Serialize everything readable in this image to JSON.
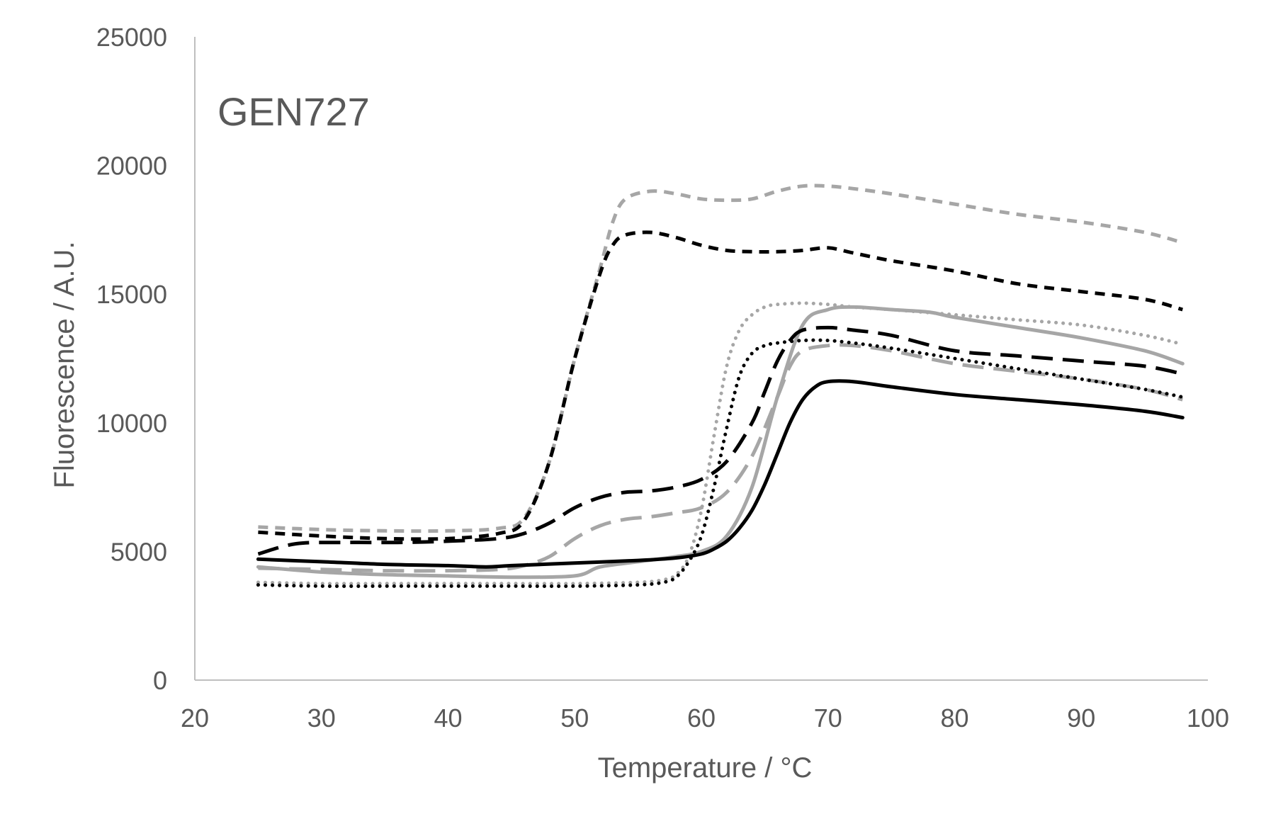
{
  "chart_data": {
    "type": "line",
    "title": "GEN727",
    "xlabel": "Temperature / °C",
    "ylabel": "Fluorescence / A.U.",
    "xlim": [
      20,
      100
    ],
    "ylim": [
      0,
      25000
    ],
    "xticks": [
      20,
      30,
      40,
      50,
      60,
      70,
      80,
      90,
      100
    ],
    "yticks": [
      0,
      5000,
      10000,
      15000,
      20000,
      25000
    ],
    "grid": false,
    "legend": "none",
    "series": [
      {
        "color": "#a6a6a6",
        "dash": "short-dash",
        "x": [
          25,
          30,
          35,
          40,
          44,
          46,
          48,
          50,
          52,
          53,
          54,
          56,
          58,
          60,
          62,
          64,
          66,
          68,
          70,
          72,
          75,
          80,
          85,
          90,
          95,
          98
        ],
        "y": [
          5950,
          5850,
          5800,
          5800,
          5900,
          6300,
          8500,
          12500,
          16000,
          17800,
          18700,
          19000,
          18900,
          18700,
          18650,
          18700,
          19000,
          19200,
          19200,
          19100,
          18900,
          18500,
          18100,
          17800,
          17400,
          17000
        ]
      },
      {
        "color": "#000000",
        "dash": "short-dash",
        "x": [
          25,
          30,
          35,
          40,
          44,
          46,
          48,
          50,
          52,
          53,
          54,
          56,
          58,
          60,
          62,
          64,
          66,
          68,
          70,
          72,
          75,
          80,
          85,
          90,
          95,
          98
        ],
        "y": [
          5750,
          5600,
          5500,
          5500,
          5700,
          6200,
          8500,
          12500,
          15800,
          16900,
          17300,
          17400,
          17200,
          16900,
          16700,
          16650,
          16650,
          16700,
          16800,
          16600,
          16300,
          15900,
          15400,
          15100,
          14800,
          14400
        ]
      },
      {
        "color": "#a6a6a6",
        "dash": "dotted",
        "x": [
          25,
          30,
          35,
          40,
          45,
          50,
          55,
          57,
          58,
          59,
          60,
          61,
          62,
          63,
          64,
          65,
          66,
          68,
          70,
          72,
          75,
          80,
          85,
          90,
          95,
          98
        ],
        "y": [
          3800,
          3750,
          3750,
          3750,
          3750,
          3750,
          3800,
          3900,
          4100,
          4800,
          6600,
          9500,
          12200,
          13600,
          14200,
          14500,
          14600,
          14650,
          14600,
          14500,
          14400,
          14200,
          14000,
          13800,
          13400,
          13050
        ]
      },
      {
        "color": "#a6a6a6",
        "dash": "solid",
        "x": [
          25,
          30,
          35,
          40,
          45,
          50,
          52,
          55,
          58,
          60,
          62,
          64,
          66,
          68,
          70,
          72,
          75,
          78,
          80,
          85,
          90,
          95,
          98
        ],
        "y": [
          4400,
          4200,
          4100,
          4050,
          4000,
          4050,
          4400,
          4600,
          4800,
          5000,
          5600,
          7500,
          11000,
          13800,
          14400,
          14500,
          14400,
          14300,
          14100,
          13700,
          13300,
          12800,
          12300
        ]
      },
      {
        "color": "#000000",
        "dash": "long-dash",
        "x": [
          25,
          28,
          32,
          36,
          40,
          44,
          46,
          48,
          50,
          52,
          54,
          56,
          58,
          60,
          62,
          64,
          65,
          66,
          67,
          68,
          70,
          72,
          75,
          80,
          85,
          90,
          95,
          98
        ],
        "y": [
          4900,
          5300,
          5350,
          5350,
          5400,
          5500,
          5700,
          6100,
          6700,
          7100,
          7300,
          7350,
          7500,
          7800,
          8500,
          10000,
          11200,
          12400,
          13200,
          13600,
          13700,
          13600,
          13400,
          12800,
          12600,
          12400,
          12200,
          11900
        ]
      },
      {
        "color": "#a6a6a6",
        "dash": "long-dash",
        "x": [
          25,
          30,
          35,
          40,
          44,
          46,
          48,
          50,
          52,
          54,
          56,
          58,
          60,
          62,
          64,
          66,
          67,
          68,
          70,
          72,
          75,
          80,
          85,
          90,
          95,
          98
        ],
        "y": [
          4350,
          4300,
          4250,
          4250,
          4300,
          4450,
          4800,
          5500,
          6000,
          6250,
          6350,
          6500,
          6700,
          7300,
          8700,
          11000,
          12200,
          12800,
          13000,
          13000,
          12800,
          12300,
          12000,
          11700,
          11300,
          10900
        ]
      },
      {
        "color": "#000000",
        "dash": "dotted",
        "x": [
          25,
          30,
          35,
          40,
          45,
          50,
          55,
          57,
          58,
          59,
          60,
          61,
          62,
          63,
          64,
          65,
          66,
          68,
          70,
          72,
          75,
          80,
          85,
          90,
          95,
          98
        ],
        "y": [
          3700,
          3650,
          3650,
          3650,
          3650,
          3650,
          3700,
          3800,
          4000,
          4600,
          5600,
          7500,
          9800,
          11800,
          12700,
          13000,
          13100,
          13200,
          13200,
          13100,
          12900,
          12500,
          12100,
          11700,
          11300,
          11000
        ]
      },
      {
        "color": "#000000",
        "dash": "solid",
        "x": [
          25,
          30,
          35,
          40,
          43,
          45,
          50,
          55,
          58,
          60,
          61,
          62,
          63,
          64,
          65,
          66,
          67,
          68,
          69,
          70,
          72,
          75,
          80,
          85,
          90,
          95,
          98
        ],
        "y": [
          4700,
          4600,
          4500,
          4450,
          4400,
          4450,
          4550,
          4650,
          4750,
          4900,
          5100,
          5400,
          5900,
          6600,
          7600,
          8800,
          10000,
          10900,
          11400,
          11600,
          11600,
          11400,
          11100,
          10900,
          10700,
          10450,
          10200
        ]
      }
    ]
  }
}
